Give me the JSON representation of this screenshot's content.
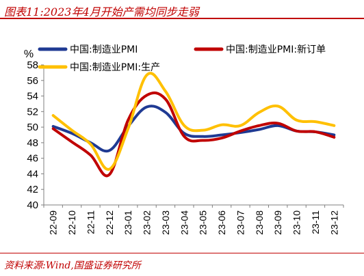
{
  "figure_title": "图表11:2023年4月开始产需均同步走弱",
  "source": "资料来源:Wind,国盛证券研究所",
  "colors": {
    "accent": "#c00000",
    "axis": "#7f7f7f"
  },
  "chart_data": {
    "type": "line",
    "y_unit": "%",
    "ylim": [
      40,
      58
    ],
    "yticks": [
      40,
      42,
      44,
      46,
      48,
      50,
      52,
      54,
      56,
      58
    ],
    "grid": false,
    "legend_position": "top",
    "categories": [
      "22-09",
      "22-10",
      "22-11",
      "22-12",
      "23-01",
      "23-02",
      "23-03",
      "23-04",
      "23-05",
      "23-06",
      "23-07",
      "23-08",
      "23-09",
      "23-10",
      "23-11",
      "23-12"
    ],
    "series": [
      {
        "name": "中国:制造业PMI",
        "color": "#1f3a93",
        "values": [
          50.1,
          49.2,
          48.0,
          47.0,
          50.1,
          52.6,
          51.9,
          49.2,
          48.8,
          49.0,
          49.3,
          49.7,
          50.2,
          49.5,
          49.4,
          49.0
        ]
      },
      {
        "name": "中国:制造业PMI:新订单",
        "color": "#c00000",
        "values": [
          49.8,
          48.1,
          46.4,
          43.9,
          50.9,
          54.1,
          53.6,
          48.8,
          48.3,
          48.6,
          49.5,
          50.2,
          50.5,
          49.5,
          49.4,
          48.7
        ]
      },
      {
        "name": "中国:制造业PMI:生产",
        "color": "#ffc000",
        "values": [
          51.5,
          49.6,
          47.8,
          44.6,
          49.8,
          56.7,
          54.6,
          50.2,
          49.6,
          50.3,
          50.2,
          51.9,
          52.7,
          50.9,
          50.7,
          50.2
        ]
      }
    ]
  }
}
